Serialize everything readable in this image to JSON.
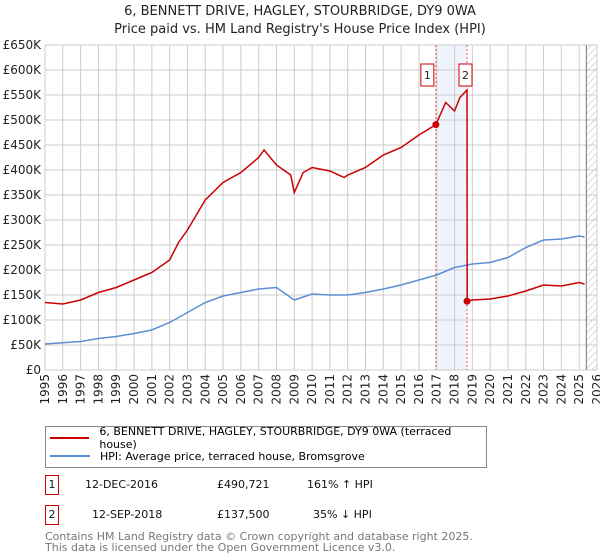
{
  "title": "6, BENNETT DRIVE, HAGLEY, STOURBRIDGE, DY9 0WA",
  "subtitle": "Price paid vs. HM Land Registry's House Price Index (HPI)",
  "colors": {
    "property": "#cc0000",
    "hpi": "#5b8fd4",
    "band": "#eef3fc"
  },
  "chart_data": {
    "type": "line",
    "xlim": [
      1995,
      2026
    ],
    "ylim": [
      0,
      650000
    ],
    "yticks": [
      "£0",
      "£50K",
      "£100K",
      "£150K",
      "£200K",
      "£250K",
      "£300K",
      "£350K",
      "£400K",
      "£450K",
      "£500K",
      "£550K",
      "£600K",
      "£650K"
    ],
    "xticks": [
      "1995",
      "1996",
      "1997",
      "1998",
      "1999",
      "2000",
      "2001",
      "2002",
      "2003",
      "2004",
      "2005",
      "2006",
      "2007",
      "2008",
      "2009",
      "2010",
      "2011",
      "2012",
      "2013",
      "2014",
      "2015",
      "2016",
      "2017",
      "2018",
      "2019",
      "2020",
      "2021",
      "2022",
      "2023",
      "2024",
      "2025",
      "2026"
    ],
    "series": [
      {
        "name": "6, BENNETT DRIVE, HAGLEY, STOURBRIDGE, DY9 0WA (terraced house)",
        "x": [
          1995,
          1996,
          1997,
          1998,
          1999,
          2000,
          2001,
          2002,
          2002.5,
          2003,
          2004,
          2005,
          2006,
          2007,
          2007.3,
          2008,
          2008.8,
          2009,
          2009.5,
          2010,
          2011,
          2011.8,
          2012,
          2013,
          2014,
          2015,
          2016,
          2016.95,
          2017.5,
          2018,
          2018.3,
          2018.7,
          2018.71,
          2019,
          2020,
          2021,
          2022,
          2023,
          2024,
          2025,
          2025.3
        ],
        "y": [
          135000,
          132000,
          140000,
          155000,
          165000,
          180000,
          195000,
          220000,
          255000,
          280000,
          340000,
          375000,
          395000,
          425000,
          440000,
          410000,
          390000,
          355000,
          395000,
          405000,
          398000,
          385000,
          390000,
          405000,
          430000,
          445000,
          470000,
          490721,
          535000,
          518000,
          545000,
          560000,
          137500,
          140000,
          142000,
          148000,
          158000,
          170000,
          168000,
          175000,
          172000
        ]
      },
      {
        "name": "HPI: Average price, terraced house, Bromsgrove",
        "x": [
          1995,
          1997,
          1998,
          1999,
          2000,
          2001,
          2002,
          2003,
          2004,
          2005,
          2006,
          2007,
          2008,
          2009,
          2010,
          2011,
          2012,
          2013,
          2014,
          2015,
          2016,
          2017,
          2018,
          2019,
          2020,
          2021,
          2022,
          2023,
          2024,
          2025,
          2025.3
        ],
        "y": [
          52000,
          57000,
          63000,
          67000,
          73000,
          80000,
          95000,
          115000,
          135000,
          148000,
          155000,
          162000,
          165000,
          140000,
          152000,
          150000,
          150000,
          155000,
          162000,
          170000,
          180000,
          190000,
          205000,
          212000,
          215000,
          225000,
          245000,
          260000,
          262000,
          268000,
          266000
        ]
      }
    ],
    "sales": [
      {
        "label": "1",
        "x": 2016.95,
        "y": 490721
      },
      {
        "label": "2",
        "x": 2018.7,
        "y": 137500
      }
    ],
    "grid": true,
    "legend": "below"
  },
  "legend": {
    "property": "6, BENNETT DRIVE, HAGLEY, STOURBRIDGE, DY9 0WA (terraced house)",
    "hpi": "HPI: Average price, terraced house, Bromsgrove"
  },
  "transactions": [
    {
      "num": "1",
      "date": "12-DEC-2016",
      "price": "£490,721",
      "hpi": "161% ↑ HPI"
    },
    {
      "num": "2",
      "date": "12-SEP-2018",
      "price": "£137,500",
      "hpi": "35% ↓ HPI"
    }
  ],
  "footer": [
    "Contains HM Land Registry data © Crown copyright and database right 2025.",
    "This data is licensed under the Open Government Licence v3.0."
  ]
}
